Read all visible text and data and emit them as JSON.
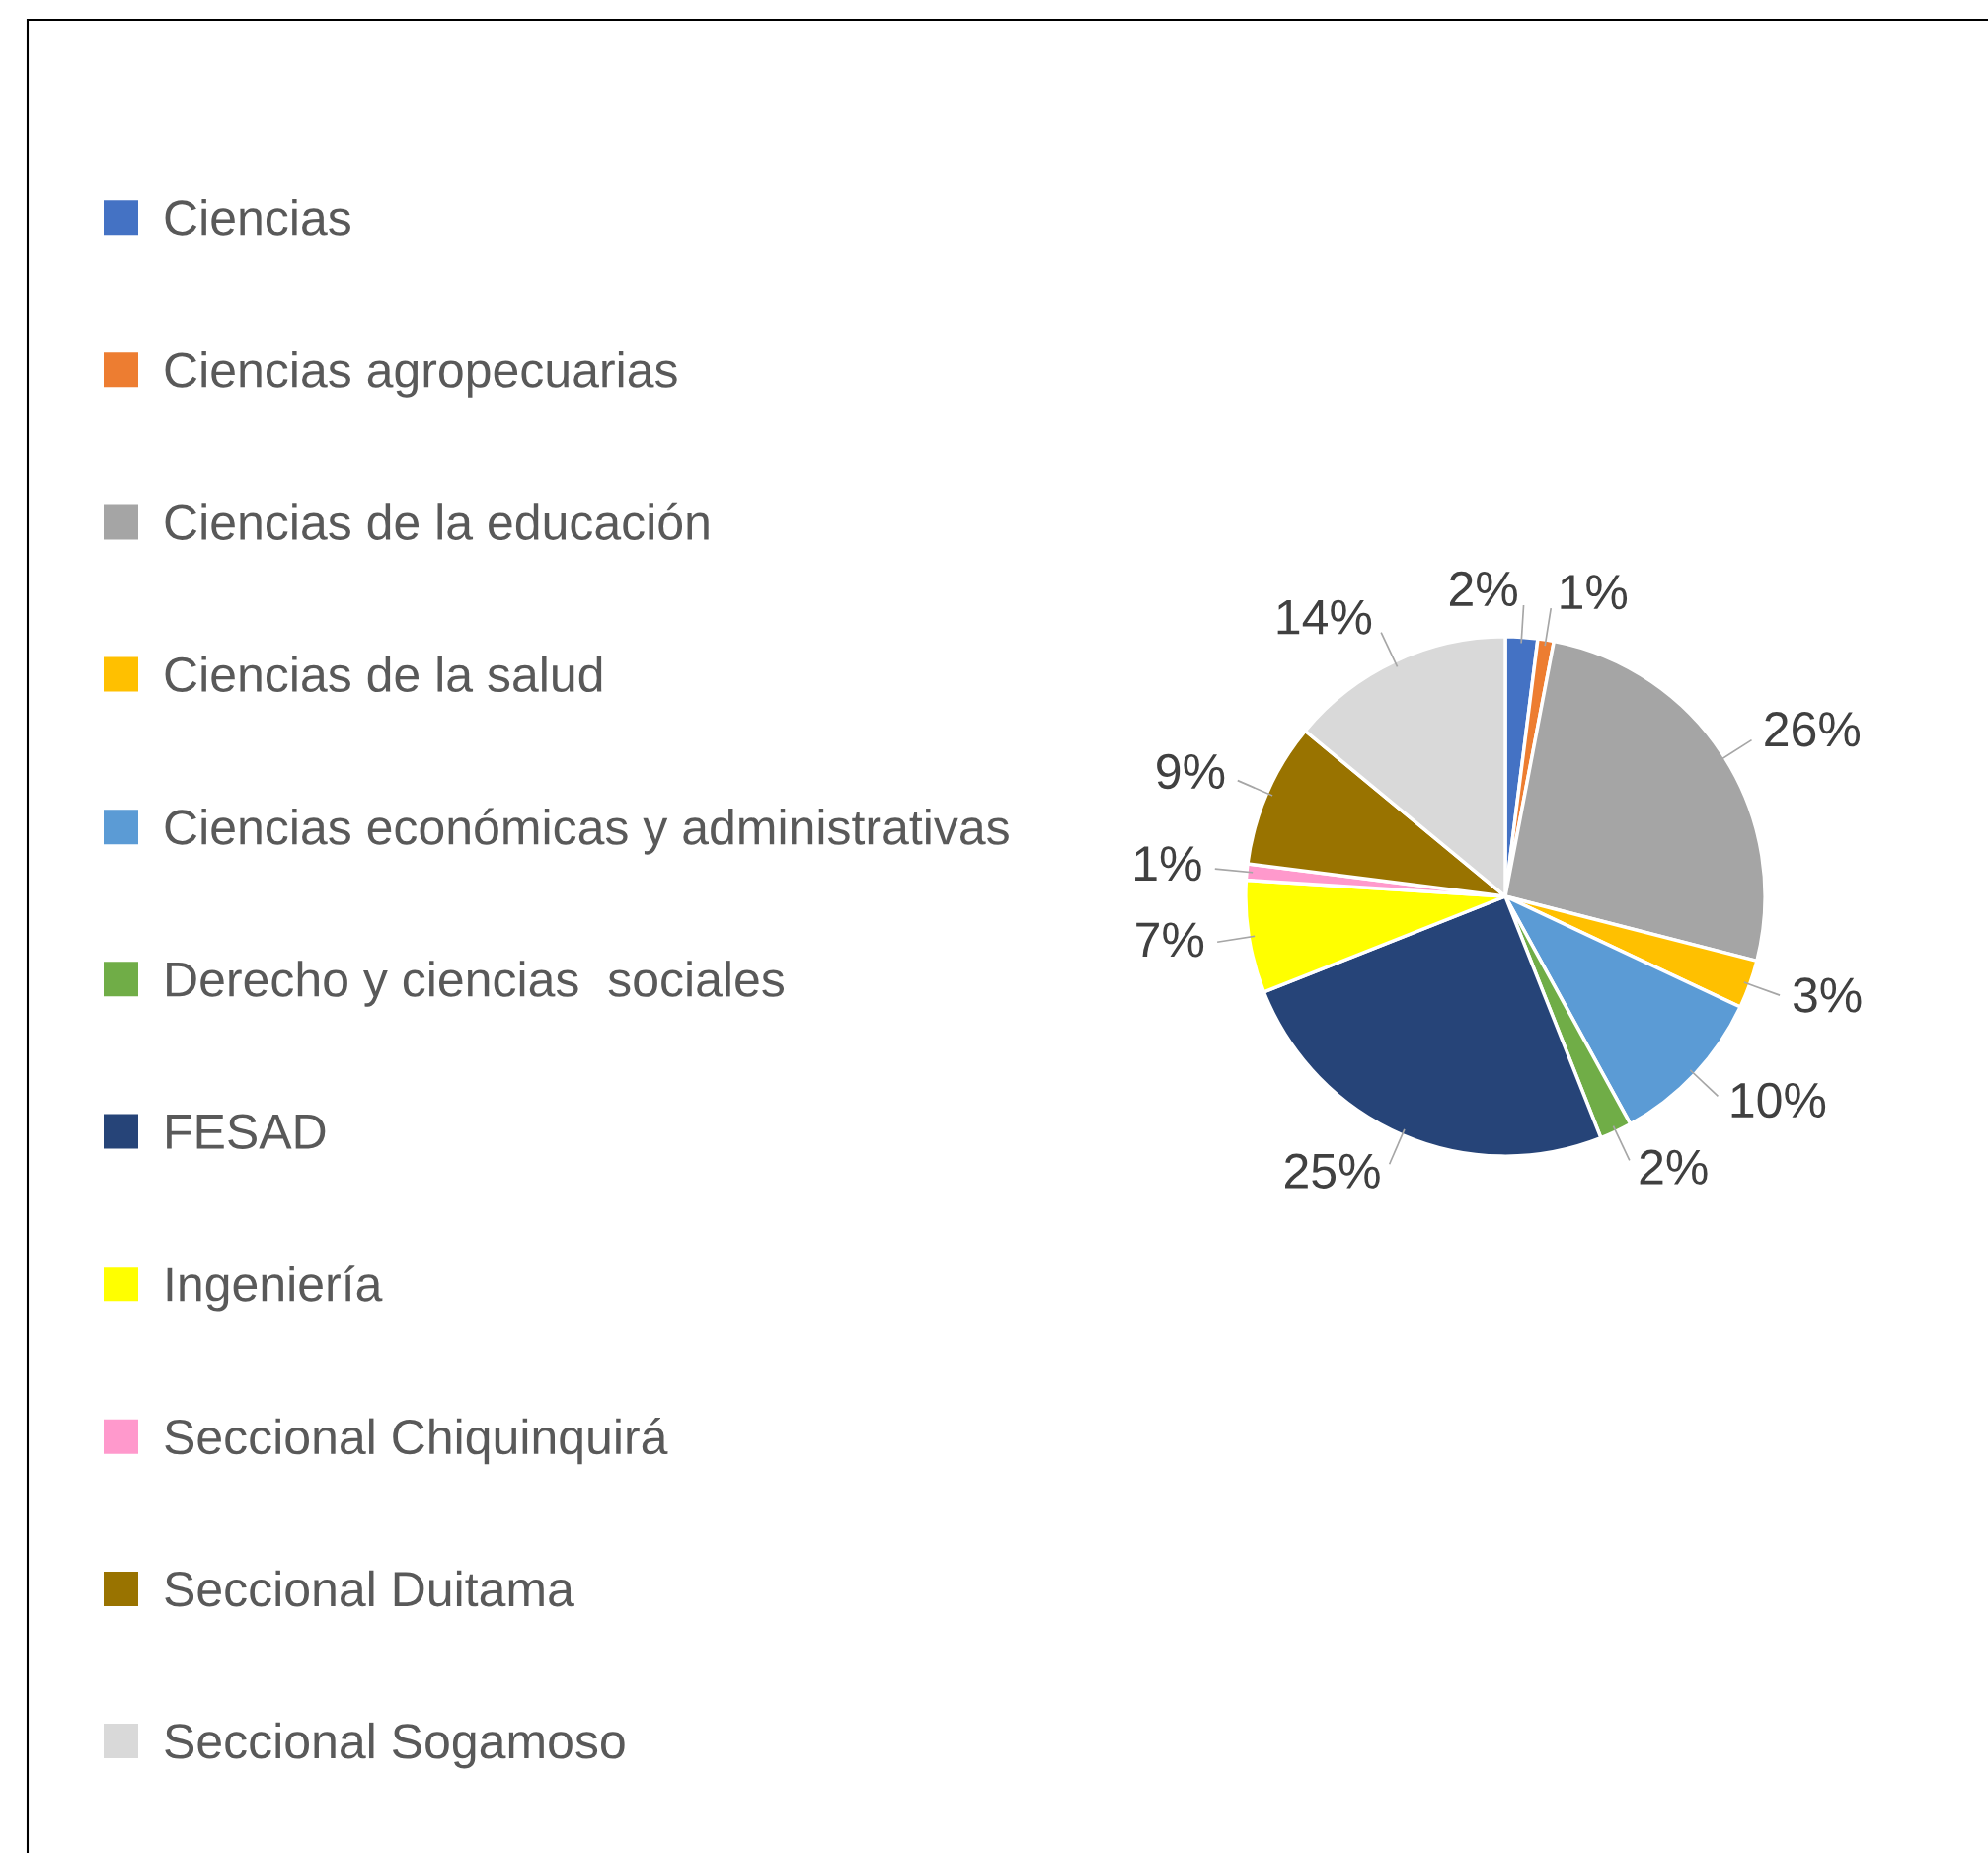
{
  "chart_data": {
    "type": "pie",
    "categories": [
      "Ciencias",
      "Ciencias agropecuarias",
      "Ciencias de la educación",
      "Ciencias de la salud",
      "Ciencias económicas y administrativas",
      "Derecho y ciencias  sociales",
      "FESAD",
      "Ingeniería",
      "Seccional Chiquinquirá",
      "Seccional Duitama",
      "Seccional Sogamoso"
    ],
    "values": [
      2,
      1,
      26,
      3,
      10,
      2,
      25,
      7,
      1,
      9,
      14
    ],
    "value_labels": [
      "2%",
      "1%",
      "26%",
      "3%",
      "10%",
      "2%",
      "25%",
      "7%",
      "1%",
      "9%",
      "14%"
    ],
    "colors": [
      "#4472c4",
      "#ed7d31",
      "#a5a5a5",
      "#ffc000",
      "#5b9bd5",
      "#70ad47",
      "#264478",
      "#ffff00",
      "#ff99cc",
      "#997300",
      "#d9d9d9"
    ],
    "legend": "left"
  }
}
